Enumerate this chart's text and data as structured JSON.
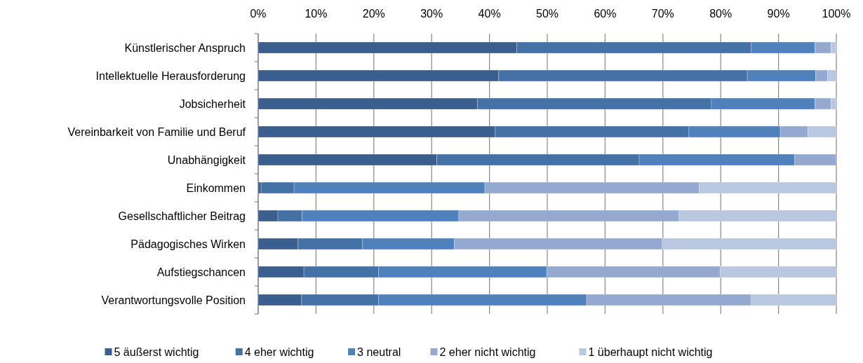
{
  "chart_data": {
    "type": "bar",
    "orientation": "horizontal",
    "stacked": true,
    "categories": [
      "Künstlerischer Anspruch",
      "Intellektuelle Herausforderung",
      "Jobsicherheit",
      "Vereinbarkeit von Familie und Beruf",
      "Unabhängigkeit",
      "Einkommen",
      "Gesellschaftlicher Beitrag",
      "Pädagogisches Wirken",
      "Aufstiegschancen",
      "Verantwortungsvolle Position"
    ],
    "series": [
      {
        "name": "5 äußerst wichtig",
        "color": "#3a5f8e",
        "values": [
          44.7,
          41.6,
          37.9,
          41.0,
          30.9,
          0.5,
          3.4,
          6.9,
          7.9,
          7.5
        ]
      },
      {
        "name": "4 eher wichtig",
        "color": "#4472a6",
        "values": [
          40.6,
          43.0,
          40.5,
          33.5,
          35.0,
          5.7,
          4.2,
          11.1,
          12.9,
          13.3
        ]
      },
      {
        "name": "3 neutral",
        "color": "#4f81bd",
        "values": [
          11.0,
          11.8,
          17.9,
          15.8,
          26.9,
          33.0,
          27.1,
          15.9,
          29.1,
          36.0
        ]
      },
      {
        "name": "2 eher nicht wichtig",
        "color": "#95a9d0",
        "values": [
          2.8,
          2.1,
          2.8,
          4.8,
          7.2,
          37.1,
          38.1,
          36.0,
          30.0,
          28.5
        ]
      },
      {
        "name": "1 überhaupt nicht wichtig",
        "color": "#bac7e0",
        "values": [
          0.9,
          1.5,
          0.9,
          4.9,
          0,
          23.7,
          27.2,
          30.1,
          20.1,
          14.7
        ]
      }
    ],
    "xlim": [
      0,
      100
    ],
    "xticks": [
      {
        "value": 0,
        "label": "0%"
      },
      {
        "value": 10,
        "label": "10%"
      },
      {
        "value": 20,
        "label": "20%"
      },
      {
        "value": 30,
        "label": "30%"
      },
      {
        "value": 40,
        "label": "40%"
      },
      {
        "value": 50,
        "label": "50%"
      },
      {
        "value": 60,
        "label": "60%"
      },
      {
        "value": 70,
        "label": "70%"
      },
      {
        "value": 80,
        "label": "80%"
      },
      {
        "value": 90,
        "label": "90%"
      },
      {
        "value": 100,
        "label": "100%"
      }
    ],
    "grid": "x",
    "legend": "bottom"
  }
}
